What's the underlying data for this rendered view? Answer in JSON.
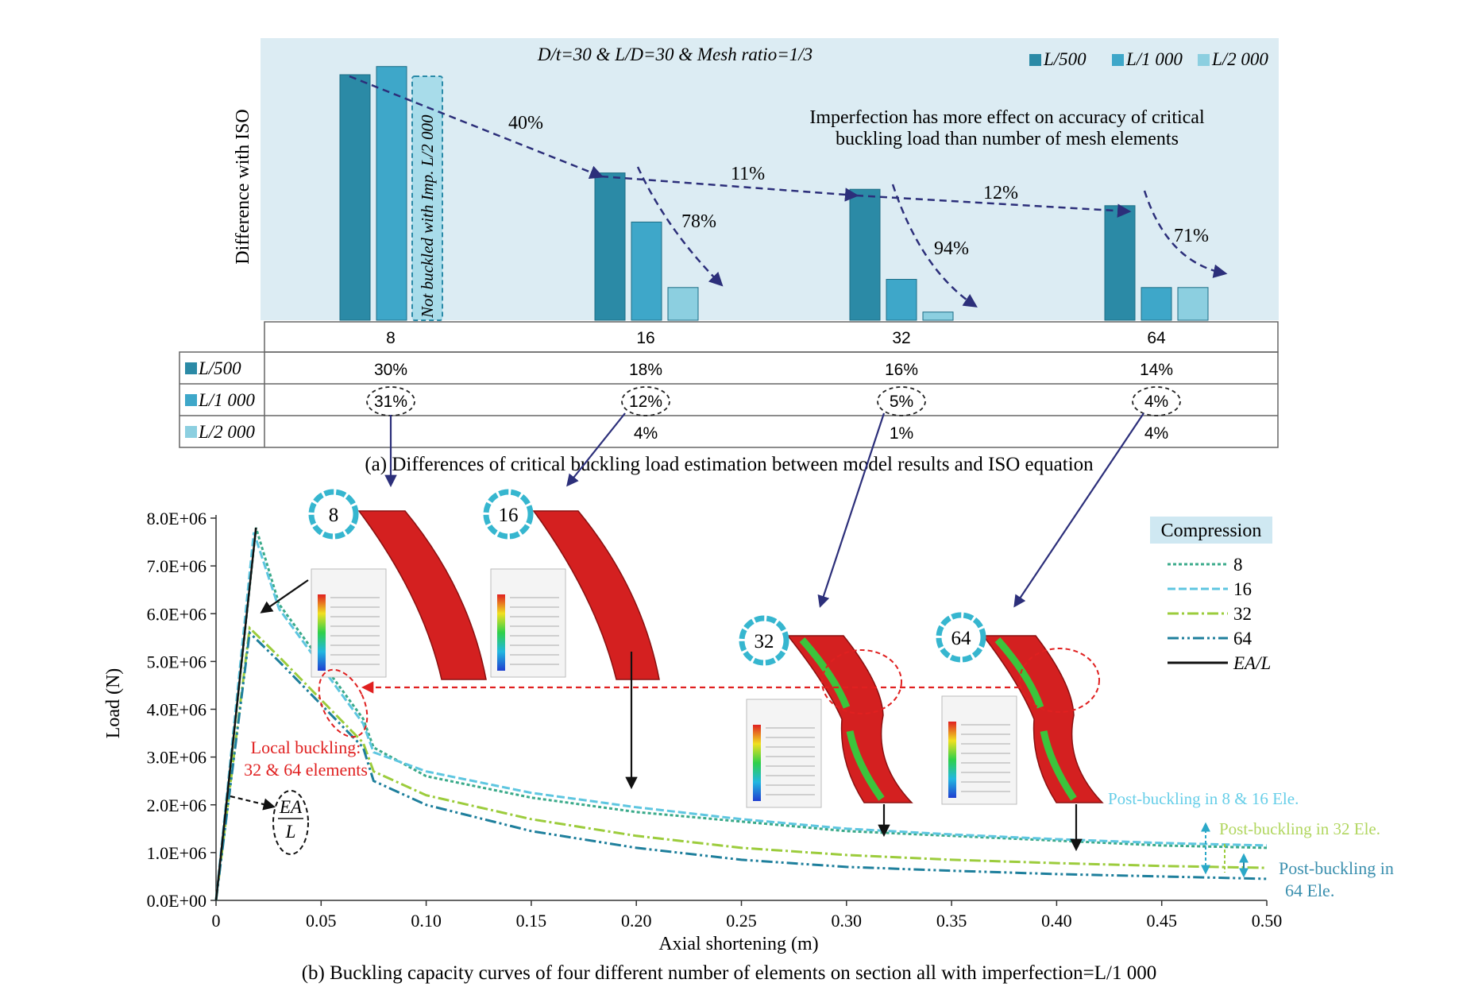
{
  "chart_data": [
    {
      "type": "bar",
      "title": "D/t=30 & L/D=30 & Mesh ratio=1/3",
      "ylabel": "Difference with ISO",
      "categories": [
        "8",
        "16",
        "32",
        "64"
      ],
      "series": [
        {
          "name": "L/500",
          "label": "L/500",
          "values": [
            30,
            18,
            16,
            14
          ],
          "labels": [
            "30%",
            "18%",
            "16%",
            "14%"
          ],
          "color": "#2b8aa6"
        },
        {
          "name": "L/1 000",
          "label": "L/1 000",
          "values": [
            31,
            12,
            5,
            4
          ],
          "labels": [
            "31%",
            "12%",
            "5%",
            "4%"
          ],
          "color": "#3ea7c9"
        },
        {
          "name": "L/2 000",
          "label": "L/2 000",
          "values": [
            null,
            4,
            1,
            4
          ],
          "labels": [
            "",
            "4%",
            "1%",
            "4%"
          ],
          "color": "#8ccfe0"
        }
      ],
      "not_buckled_note": "Not buckled with Imp. L/2 000",
      "trend_labels": {
        "mesh_8_16": "40%",
        "mesh_16_32": "11%",
        "mesh_32_64": "12%",
        "imp_16": "78%",
        "imp_32": "94%",
        "imp_64": "71%"
      },
      "annotation": [
        "Imperfection has more effect on accuracy of critical",
        "buckling load than number of mesh elements"
      ],
      "caption": "(a) Differences of critical buckling load estimation between model results and ISO equation"
    },
    {
      "type": "line",
      "xlabel": "Axial shortening (m)",
      "ylabel": "Load (N)",
      "xlim": [
        0,
        0.5
      ],
      "ylim": [
        0,
        8000000
      ],
      "x_ticks": [
        0,
        0.05,
        0.1,
        0.15,
        0.2,
        0.25,
        0.3,
        0.35,
        0.4,
        0.45,
        0.5
      ],
      "x_tick_labels": [
        "0",
        "0.05",
        "0.10",
        "0.15",
        "0.20",
        "0.25",
        "0.30",
        "0.35",
        "0.40",
        "0.45",
        "0.50"
      ],
      "y_ticks": [
        0,
        1000000,
        2000000,
        3000000,
        4000000,
        5000000,
        6000000,
        7000000,
        8000000
      ],
      "y_tick_labels": [
        "0.0E+00",
        "1.0E+06",
        "2.0E+06",
        "3.0E+06",
        "4.0E+06",
        "5.0E+06",
        "6.0E+06",
        "7.0E+06",
        "8.0E+06"
      ],
      "legend_title": "Compression",
      "series": [
        {
          "name": "8",
          "color": "#3aaa8a",
          "dash": "4 3",
          "points": [
            [
              0,
              0
            ],
            [
              0.019,
              7800000
            ],
            [
              0.03,
              6200000
            ],
            [
              0.05,
              5000000
            ],
            [
              0.07,
              3800000
            ],
            [
              0.075,
              3200000
            ],
            [
              0.1,
              2600000
            ],
            [
              0.15,
              2150000
            ],
            [
              0.2,
              1850000
            ],
            [
              0.25,
              1650000
            ],
            [
              0.3,
              1450000
            ],
            [
              0.35,
              1350000
            ],
            [
              0.4,
              1250000
            ],
            [
              0.45,
              1150000
            ],
            [
              0.5,
              1100000
            ]
          ]
        },
        {
          "name": "16",
          "color": "#5ec6e0",
          "dash": "10 4",
          "points": [
            [
              0,
              0
            ],
            [
              0.018,
              7700000
            ],
            [
              0.03,
              6100000
            ],
            [
              0.05,
              4900000
            ],
            [
              0.07,
              3700000
            ],
            [
              0.075,
              3100000
            ],
            [
              0.1,
              2700000
            ],
            [
              0.15,
              2250000
            ],
            [
              0.2,
              1950000
            ],
            [
              0.25,
              1700000
            ],
            [
              0.3,
              1500000
            ],
            [
              0.35,
              1380000
            ],
            [
              0.4,
              1280000
            ],
            [
              0.45,
              1200000
            ],
            [
              0.5,
              1150000
            ]
          ]
        },
        {
          "name": "32",
          "color": "#9ccc3c",
          "dash": "14 4 3 4",
          "points": [
            [
              0,
              0
            ],
            [
              0.016,
              5700000
            ],
            [
              0.03,
              5100000
            ],
            [
              0.05,
              4200000
            ],
            [
              0.07,
              3300000
            ],
            [
              0.075,
              2700000
            ],
            [
              0.1,
              2200000
            ],
            [
              0.15,
              1700000
            ],
            [
              0.2,
              1350000
            ],
            [
              0.25,
              1100000
            ],
            [
              0.3,
              950000
            ],
            [
              0.35,
              850000
            ],
            [
              0.4,
              780000
            ],
            [
              0.45,
              720000
            ],
            [
              0.5,
              680000
            ]
          ]
        },
        {
          "name": "64",
          "color": "#1e7f9c",
          "dash": "14 4 3 4 3 4",
          "points": [
            [
              0,
              0
            ],
            [
              0.016,
              5600000
            ],
            [
              0.03,
              5000000
            ],
            [
              0.05,
              4100000
            ],
            [
              0.07,
              3200000
            ],
            [
              0.075,
              2500000
            ],
            [
              0.1,
              2000000
            ],
            [
              0.15,
              1450000
            ],
            [
              0.2,
              1100000
            ],
            [
              0.25,
              850000
            ],
            [
              0.3,
              700000
            ],
            [
              0.35,
              620000
            ],
            [
              0.4,
              550000
            ],
            [
              0.45,
              500000
            ],
            [
              0.5,
              450000
            ]
          ]
        },
        {
          "name": "EA/L",
          "color": "#111111",
          "dash": "",
          "points": [
            [
              0,
              0
            ],
            [
              0.019,
              7800000
            ]
          ]
        }
      ],
      "ring_labels": [
        "8",
        "16",
        "32",
        "64"
      ],
      "local_buckling_note": [
        "Local buckling:",
        "32 & 64 elements"
      ],
      "ea_label": {
        "num": "EA",
        "den": "L"
      },
      "post_labels": {
        "p816": "Post-buckling in 8 & 16 Ele.",
        "p32": "Post-buckling in 32 Ele.",
        "p64a": "Post-buckling in",
        "p64b": "64 Ele."
      },
      "caption": "(b) Buckling capacity curves of four different number of elements on section all with imperfection=L/1 000"
    }
  ]
}
